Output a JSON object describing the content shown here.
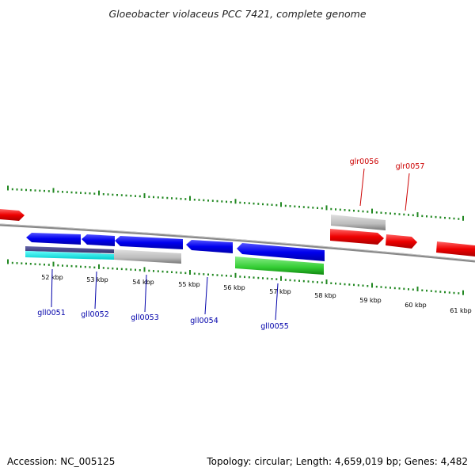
{
  "title": "Gloeobacter violaceus PCC 7421, complete genome",
  "footer": {
    "accession": "Accession: NC_005125",
    "topology": "Topology: circular; Length: 4,659,019 bp; Genes: 4,482"
  },
  "kbp_ticks": [
    "52 kbp",
    "53 kbp",
    "54 kbp",
    "55 kbp",
    "56 kbp",
    "57 kbp",
    "58 kbp",
    "59 kbp",
    "60 kbp",
    "61 kbp"
  ],
  "genes_forward": [
    {
      "label": "glr0056",
      "color": "#cc0000"
    },
    {
      "label": "glr0057",
      "color": "#cc0000"
    }
  ],
  "genes_reverse": [
    {
      "label": "gll0051",
      "color": "#0000aa"
    },
    {
      "label": "gll0052",
      "color": "#0000aa"
    },
    {
      "label": "gll0053",
      "color": "#0000aa"
    },
    {
      "label": "gll0054",
      "color": "#0000aa"
    },
    {
      "label": "gll0055",
      "color": "#0000aa"
    }
  ],
  "colors": {
    "forward_gene": "#ff0000",
    "reverse_gene": "#0000ee",
    "rna_gray": "#bbbbbb",
    "cyan_feature": "#00dddd",
    "green_feature": "#33cc33",
    "tick": "#228822",
    "backbone": "#888888"
  }
}
